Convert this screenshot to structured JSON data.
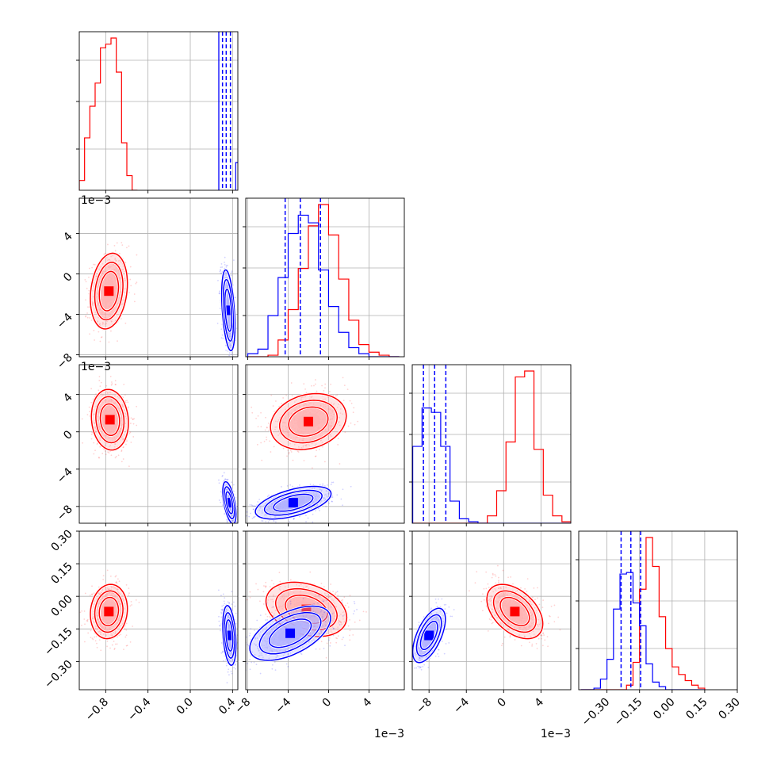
{
  "chart_data": {
    "type": "corner",
    "parameters": 4,
    "series": [
      {
        "name": "",
        "color": "#ff0000"
      },
      {
        "name": "",
        "color": "#0000ff"
      }
    ],
    "grid": true,
    "offset_label": "1e−3",
    "axes": [
      {
        "index": 0,
        "range": [
          -1.05,
          0.45
        ],
        "ticks": [
          -0.8,
          -0.4,
          0.0,
          0.4
        ],
        "tick_labels": [
          "−0.8",
          "−0.4",
          "0.0",
          "0.4"
        ],
        "scale": "linear"
      },
      {
        "index": 1,
        "range": [
          -8.2,
          7.5
        ],
        "ticks": [
          -8,
          -4,
          0,
          4
        ],
        "tick_labels": [
          "−8",
          "−4",
          "0",
          "4"
        ],
        "offset_text": "1e−3"
      },
      {
        "index": 2,
        "range": [
          -9.8,
          7.2
        ],
        "ticks": [
          -8,
          -4,
          0,
          4
        ],
        "tick_labels": [
          "−8",
          "−4",
          "0",
          "4"
        ],
        "offset_text": "1e−3"
      },
      {
        "index": 3,
        "range": [
          -0.43,
          0.3
        ],
        "ticks": [
          -0.3,
          -0.15,
          0.0,
          0.15,
          0.3
        ],
        "tick_labels": [
          "−0.30",
          "−0.15",
          "0.00",
          "0.15",
          "0.30"
        ]
      }
    ],
    "histograms": [
      {
        "param": 0,
        "red": {
          "centers": [
            -1.025,
            -0.975,
            -0.925,
            -0.875,
            -0.825,
            -0.775,
            -0.725,
            -0.675,
            -0.625,
            -0.575,
            -0.525
          ],
          "counts": [
            0.08,
            0.43,
            0.69,
            0.88,
            1.17,
            1.2,
            1.25,
            0.97,
            0.39,
            0.12,
            0.0
          ]
        },
        "blue": {
          "quantiles": [
            0.275,
            0.305,
            0.34,
            0.38
          ]
        }
      },
      {
        "param": 1,
        "red": {
          "centers": [
            -7.5,
            -6.5,
            -5.5,
            -4.5,
            -3.5,
            -2.5,
            -1.5,
            -0.5,
            0.5,
            1.5,
            2.5,
            3.5,
            4.5,
            5.5,
            6.5
          ],
          "counts": [
            0,
            0,
            0.01,
            0.11,
            0.31,
            0.58,
            0.86,
            1.0,
            0.8,
            0.51,
            0.24,
            0.08,
            0.03,
            0.01,
            0.0
          ]
        },
        "blue": {
          "centers": [
            -7.5,
            -6.5,
            -5.5,
            -4.5,
            -3.5,
            -2.5,
            -1.5,
            -0.5,
            0.5,
            1.5,
            2.5,
            3.5,
            4.5,
            5.5,
            6.5
          ],
          "counts": [
            0.02,
            0.05,
            0.27,
            0.52,
            0.81,
            0.93,
            0.88,
            0.57,
            0.33,
            0.16,
            0.06,
            0.02,
            0,
            0,
            0
          ]
        },
        "blue_quantiles": [
          -4.3,
          -2.8,
          -0.8
        ]
      },
      {
        "param": 2,
        "red": {
          "centers": [
            -9.25,
            -8.25,
            -7.25,
            -6.25,
            -5.25,
            -4.25,
            -3.25,
            -2.25,
            -1.25,
            -0.25,
            0.75,
            1.75,
            2.75,
            3.75,
            4.75,
            5.75,
            6.75
          ],
          "counts": [
            0,
            0,
            0,
            0,
            0,
            0,
            0,
            0,
            0.05,
            0.22,
            0.55,
            0.99,
            1.03,
            0.5,
            0.19,
            0.05,
            0.01
          ]
        },
        "blue": {
          "centers": [
            -9.25,
            -8.25,
            -7.25,
            -6.25,
            -5.25,
            -4.25,
            -3.25,
            -2.25,
            -1.25,
            -0.25,
            0.75,
            1.75,
            2.75,
            3.75,
            4.75,
            5.75,
            6.75
          ],
          "counts": [
            0.52,
            0.78,
            0.75,
            0.52,
            0.15,
            0.03,
            0.01,
            0,
            0,
            0,
            0,
            0,
            0,
            0,
            0,
            0,
            0
          ]
        },
        "blue_quantiles": [
          -8.6,
          -7.4,
          -6.2
        ]
      },
      {
        "param": 3,
        "red": {
          "centers": [
            -0.405,
            -0.375,
            -0.345,
            -0.315,
            -0.285,
            -0.255,
            -0.225,
            -0.195,
            -0.165,
            -0.135,
            -0.105,
            -0.075,
            -0.045,
            -0.015,
            0.015,
            0.045,
            0.075,
            0.105,
            0.135
          ],
          "counts": [
            0,
            0,
            0,
            0,
            0,
            0,
            0,
            0.03,
            0.18,
            0.66,
            1.0,
            0.81,
            0.48,
            0.27,
            0.15,
            0.1,
            0.06,
            0.03,
            0.01
          ]
        },
        "blue": {
          "centers": [
            -0.405,
            -0.375,
            -0.345,
            -0.315,
            -0.285,
            -0.255,
            -0.225,
            -0.195,
            -0.165,
            -0.135,
            -0.105,
            -0.075,
            -0.045,
            -0.015,
            0.015,
            0.045,
            0.075,
            0.105,
            0.135
          ],
          "counts": [
            0,
            0,
            0.01,
            0.07,
            0.2,
            0.53,
            0.76,
            0.77,
            0.57,
            0.42,
            0.17,
            0.05,
            0.02,
            0,
            0,
            0,
            0,
            0,
            0
          ]
        },
        "blue_quantiles": [
          -0.235,
          -0.19,
          -0.145
        ]
      }
    ],
    "distributions_2d": [
      {
        "x": 0,
        "y": 1,
        "red": {
          "cx": -0.77,
          "cy": -1.7,
          "sx": 0.07,
          "sy": 1.5,
          "rho": 0.2
        },
        "blue": {
          "cx": 0.36,
          "cy": -3.6,
          "sx": 0.025,
          "sy": 1.6,
          "rho": -0.4
        }
      },
      {
        "x": 0,
        "y": 2,
        "red": {
          "cx": -0.76,
          "cy": 1.3,
          "sx": 0.07,
          "sy": 1.3,
          "rho": -0.1
        },
        "blue": {
          "cx": 0.37,
          "cy": -7.6,
          "sx": 0.025,
          "sy": 0.9,
          "rho": -0.55
        }
      },
      {
        "x": 1,
        "y": 2,
        "red": {
          "cx": -2.0,
          "cy": 1.1,
          "sx": 1.5,
          "sy": 1.2,
          "rho": 0.2
        },
        "blue": {
          "cx": -3.5,
          "cy": -7.6,
          "sx": 1.5,
          "sy": 0.7,
          "rho": 0.55
        }
      },
      {
        "x": 0,
        "y": 3,
        "red": {
          "cx": -0.77,
          "cy": -0.07,
          "sx": 0.07,
          "sy": 0.05,
          "rho": 0.1
        },
        "blue": {
          "cx": 0.37,
          "cy": -0.18,
          "sx": 0.025,
          "sy": 0.055,
          "rho": -0.3
        }
      },
      {
        "x": 1,
        "y": 3,
        "red": {
          "cx": -2.2,
          "cy": -0.06,
          "sx": 1.6,
          "sy": 0.05,
          "rho": -0.3
        },
        "blue": {
          "cx": -3.8,
          "cy": -0.17,
          "sx": 1.6,
          "sy": 0.05,
          "rho": 0.55
        }
      },
      {
        "x": 2,
        "y": 3,
        "red": {
          "cx": 1.2,
          "cy": -0.07,
          "sx": 1.2,
          "sy": 0.05,
          "rho": -0.45
        },
        "blue": {
          "cx": -8.0,
          "cy": -0.18,
          "sx": 0.7,
          "sy": 0.05,
          "rho": 0.6
        }
      }
    ]
  }
}
